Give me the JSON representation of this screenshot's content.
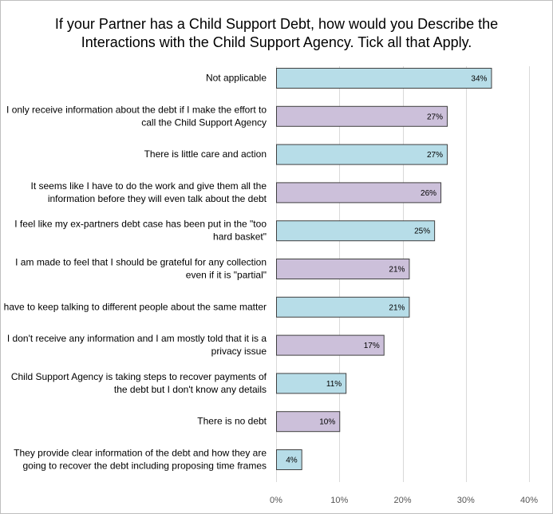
{
  "chart_data": {
    "type": "bar",
    "orientation": "horizontal",
    "title_lines": [
      "If your Partner has a Child Support Debt, how would you Describe the",
      "Interactions with the Child Support Agency.  Tick all that Apply."
    ],
    "categories": [
      [
        "Not applicable"
      ],
      [
        "I only receive information about the debt if I make the effort to",
        "call the Child Support Agency"
      ],
      [
        "There is little care and action"
      ],
      [
        "It seems like I have to do the work and give them all the",
        "information before they will even talk about the debt"
      ],
      [
        "I feel like my ex-partners debt case has been put in the \"too",
        "hard basket\""
      ],
      [
        "I am made to feel that I should be grateful for any collection",
        "even if it is \"partial\""
      ],
      [
        "I have to keep talking to different people about the same matter"
      ],
      [
        "I don't receive any information and I am mostly told that it is a",
        "privacy issue"
      ],
      [
        "Child Support Agency is taking steps to recover payments of",
        "the debt but I don't know any details"
      ],
      [
        "There is no debt"
      ],
      [
        "They provide clear information of the debt and how they are",
        "going to recover the debt including proposing time frames"
      ]
    ],
    "values": [
      34,
      27,
      27,
      26,
      25,
      21,
      21,
      17,
      11,
      10,
      4
    ],
    "value_labels": [
      "34%",
      "27%",
      "27%",
      "26%",
      "25%",
      "21%",
      "21%",
      "17%",
      "11%",
      "10%",
      "4%"
    ],
    "bar_colors": [
      "#b7dde8",
      "#ccc0da",
      "#b7dde8",
      "#ccc0da",
      "#b7dde8",
      "#ccc0da",
      "#b7dde8",
      "#ccc0da",
      "#b7dde8",
      "#ccc0da",
      "#b7dde8"
    ],
    "xlim": [
      0,
      40
    ],
    "x_ticks": [
      0,
      10,
      20,
      30,
      40
    ],
    "x_tick_labels": [
      "0%",
      "10%",
      "20%",
      "30%",
      "40%"
    ],
    "xlabel": "",
    "ylabel": "",
    "grid": true
  }
}
